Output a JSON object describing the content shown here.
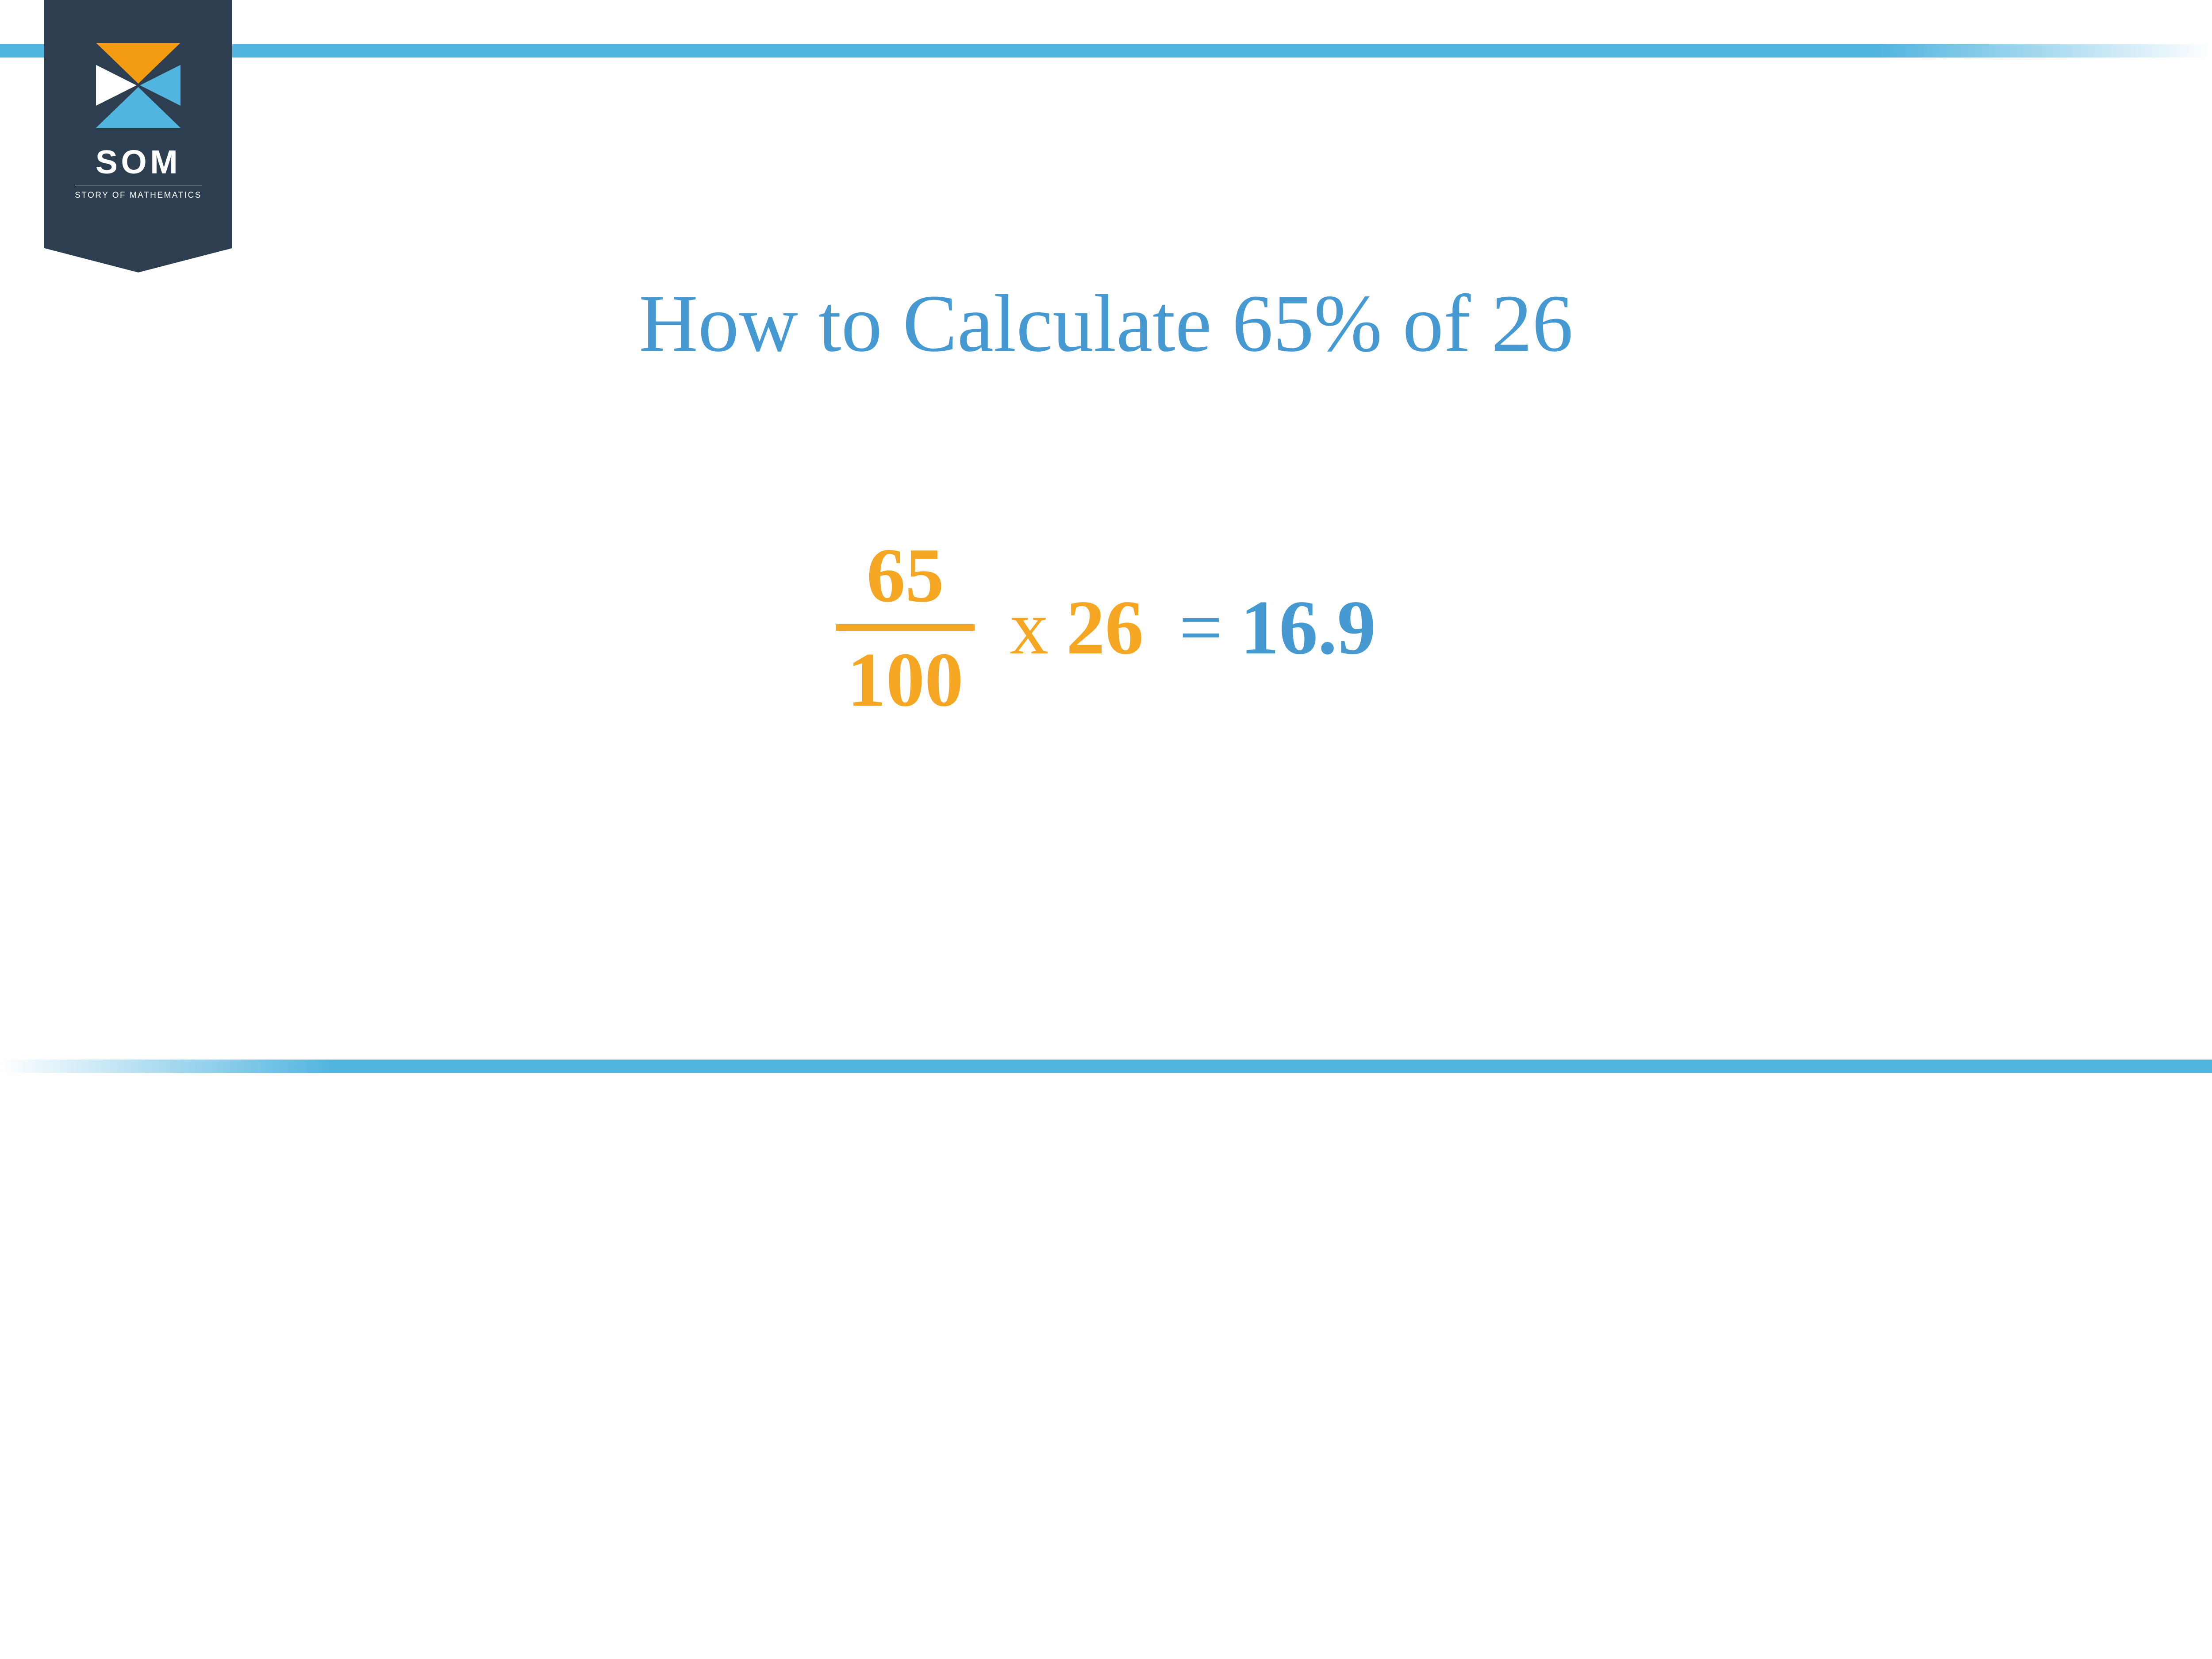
{
  "logo": {
    "text": "SOM",
    "subtitle": "STORY OF MATHEMATICS"
  },
  "title": "How to Calculate 65% of 26",
  "equation": {
    "numerator": "65",
    "denominator": "100",
    "multiply_symbol": "x",
    "multiplier": "26",
    "equals_symbol": "=",
    "result": "16.9"
  },
  "colors": {
    "title_color": "#4699d1",
    "fraction_color": "#f5a623",
    "result_color": "#4699d1",
    "border_color": "#52b5e0",
    "badge_color": "#2c3e50",
    "background": "#ffffff"
  },
  "typography": {
    "title_fontsize_vw": 3.7,
    "equation_fontsize_vw": 3.5,
    "font_family": "Georgia, serif"
  }
}
